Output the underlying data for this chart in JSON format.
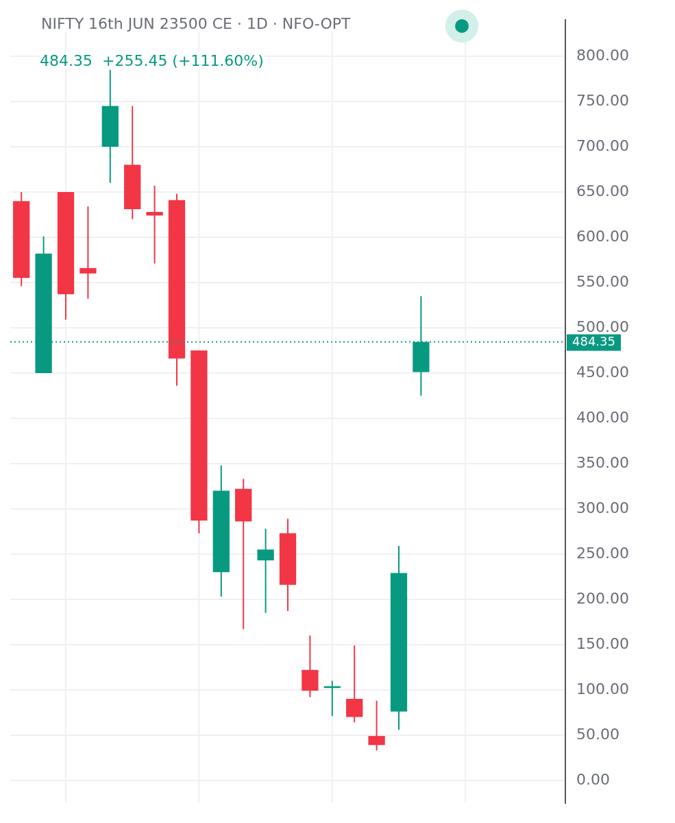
{
  "chart_data": {
    "type": "candlestick",
    "title": "NIFTY 16th JUN 23500 CE · 1D · NFO-OPT",
    "subtitle": "484.35  +255.45 (+111.60%)",
    "categories": [
      null,
      null,
      null,
      null,
      null,
      null,
      null,
      null,
      null,
      null,
      null,
      null,
      null,
      null,
      null,
      null,
      null,
      null,
      null,
      null,
      null,
      null,
      null,
      null,
      null
    ],
    "ohlc": [
      [
        640,
        650,
        546,
        555
      ],
      [
        450,
        601,
        450,
        582
      ],
      [
        650,
        650,
        509,
        537
      ],
      [
        566,
        634,
        532,
        560
      ],
      [
        700,
        785,
        660,
        745
      ],
      [
        680,
        745,
        620,
        631
      ],
      [
        628,
        657,
        571,
        624
      ],
      [
        641,
        648,
        436,
        466
      ],
      [
        475,
        475,
        273,
        287
      ],
      [
        230,
        348,
        203,
        320
      ],
      [
        322,
        333,
        167,
        286
      ],
      [
        243,
        278,
        185,
        255
      ],
      [
        273,
        289,
        187,
        216
      ],
      [
        122,
        160,
        92,
        99
      ],
      [
        102,
        110,
        71,
        104
      ],
      [
        90,
        149,
        64,
        70
      ],
      [
        49,
        88,
        33,
        39
      ],
      [
        76,
        259,
        56,
        229
      ],
      [
        451,
        535,
        425,
        484.35
      ],
      null,
      null,
      null,
      null,
      null,
      null
    ],
    "colors": [
      "#f23645",
      "#089981",
      "#f23645",
      "#f23645",
      "#089981",
      "#f23645",
      "#f23645",
      "#f23645",
      "#f23645",
      "#089981",
      "#f23645",
      "#089981",
      "#f23645",
      "#f23645",
      "#089981",
      "#f23645",
      "#f23645",
      "#089981",
      "#089981",
      null,
      null,
      null,
      null,
      null,
      null
    ],
    "ylim": [
      -25,
      840
    ],
    "yticks": [
      {
        "value": 0,
        "label": "0.00"
      },
      {
        "value": 50,
        "label": "50.00"
      },
      {
        "value": 100,
        "label": "100.00"
      },
      {
        "value": 150,
        "label": "150.00"
      },
      {
        "value": 200,
        "label": "200.00"
      },
      {
        "value": 250,
        "label": "250.00"
      },
      {
        "value": 300,
        "label": "300.00"
      },
      {
        "value": 350,
        "label": "350.00"
      },
      {
        "value": 400,
        "label": "400.00"
      },
      {
        "value": 450,
        "label": "450.00"
      },
      {
        "value": 500,
        "label": "500.00"
      },
      {
        "value": 550,
        "label": "550.00"
      },
      {
        "value": 600,
        "label": "600.00"
      },
      {
        "value": 650,
        "label": "650.00"
      },
      {
        "value": 700,
        "label": "700.00"
      },
      {
        "value": 750,
        "label": "750.00"
      },
      {
        "value": 800,
        "label": "800.00"
      }
    ],
    "ref_lines": [
      {
        "axis": "y",
        "value": 484.35,
        "label": "484.35",
        "color": "#089981",
        "line_style": "dotted"
      }
    ],
    "grid": true,
    "tick_labels": "y"
  }
}
